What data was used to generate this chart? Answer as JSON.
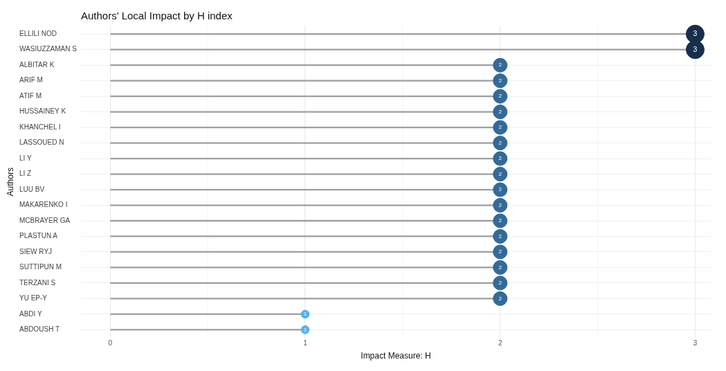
{
  "chart_data": {
    "type": "lollipop",
    "orientation": "horizontal",
    "title": "Authors' Local Impact by H index",
    "xlabel": "Impact Measure: H",
    "ylabel": "Authors",
    "categories": [
      "ELLILI NOD",
      "WASIUZZAMAN S",
      "ALBITAR K",
      "ARIF M",
      "ATIF M",
      "HUSSAINEY K",
      "KHANCHEL I",
      "LASSOUED N",
      "LI Y",
      "LI Z",
      "LUU BV",
      "MAKARENKO I",
      "MCBRAYER GA",
      "PLASTUN A",
      "SIEW RYJ",
      "SUTTIPUN M",
      "TERZANI S",
      "YU EP-Y",
      "ABDI Y",
      "ABDOUSH T"
    ],
    "values": [
      3,
      3,
      2,
      2,
      2,
      2,
      2,
      2,
      2,
      2,
      2,
      2,
      2,
      2,
      2,
      2,
      2,
      2,
      1,
      1
    ],
    "colors": [
      "#172f4c",
      "#172f4c",
      "#336a98",
      "#336a98",
      "#336a98",
      "#336a98",
      "#336a98",
      "#336a98",
      "#336a98",
      "#336a98",
      "#336a98",
      "#336a98",
      "#336a98",
      "#336a98",
      "#336a98",
      "#336a98",
      "#336a98",
      "#336a98",
      "#56b1f7",
      "#56b1f7"
    ],
    "sizes": [
      1,
      1,
      0.6,
      0.6,
      0.6,
      0.6,
      0.6,
      0.6,
      0.6,
      0.6,
      0.6,
      0.6,
      0.6,
      0.6,
      0.6,
      0.6,
      0.6,
      0.6,
      0.2,
      0.2
    ],
    "xlim": [
      -0.15,
      3.08
    ],
    "xticks": [
      0,
      1,
      2,
      3
    ],
    "grid": true,
    "data_labels": true
  }
}
